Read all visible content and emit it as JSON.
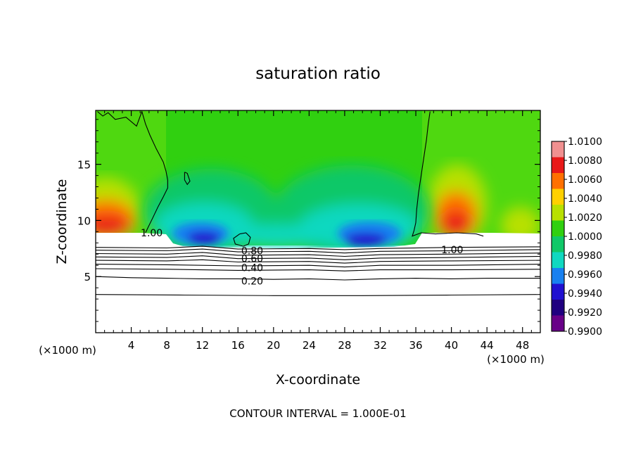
{
  "chart_data": {
    "type": "heatmap",
    "title": "saturation ratio",
    "xlabel": "X-coordinate",
    "ylabel": "Z-coordinate",
    "x_unit_label": "(×1000 m)",
    "x_ticks": [
      4,
      8,
      12,
      16,
      20,
      24,
      28,
      32,
      36,
      40,
      44,
      48
    ],
    "y_ticks": [
      5,
      10,
      15
    ],
    "xlim": [
      0,
      50
    ],
    "ylim": [
      0,
      19.8
    ],
    "footer": "CONTOUR INTERVAL = 1.000E-01",
    "colorbar": {
      "ticks": [
        "1.0100",
        "1.0080",
        "1.0060",
        "1.0040",
        "1.0020",
        "1.0000",
        "0.9980",
        "0.9960",
        "0.9940",
        "0.9920",
        "0.9900"
      ],
      "range": [
        0.99,
        1.01
      ],
      "colors": [
        "#f09090",
        "#e81818",
        "#ff7000",
        "#ffd000",
        "#b8e000",
        "#30d010",
        "#10c868",
        "#10d8c0",
        "#1880f0",
        "#2010d0",
        "#200080",
        "#680088"
      ]
    },
    "contour_labels": [
      {
        "text": "1.00",
        "x": 6.3,
        "y": 8.9
      },
      {
        "text": "1.00",
        "x": 40.1,
        "y": 7.4
      },
      {
        "text": "0.80",
        "x": 17.6,
        "y": 7.3
      },
      {
        "text": "0.60",
        "x": 17.6,
        "y": 6.6
      },
      {
        "text": "0.40",
        "x": 17.6,
        "y": 5.8
      },
      {
        "text": "0.20",
        "x": 17.6,
        "y": 4.6
      }
    ],
    "contours": [
      {
        "level": 0.2,
        "x": [
          0,
          4,
          8,
          12,
          16,
          20,
          24,
          28,
          32,
          36,
          40,
          44,
          50
        ],
        "y": [
          5.0,
          4.9,
          4.85,
          4.8,
          4.8,
          4.75,
          4.8,
          4.7,
          4.8,
          4.85,
          4.8,
          4.85,
          4.85
        ]
      },
      {
        "level": 0.1,
        "x": [
          0,
          10,
          20,
          30,
          40,
          50
        ],
        "y": [
          3.4,
          3.35,
          3.3,
          3.3,
          3.35,
          3.4
        ]
      },
      {
        "level": 0.3,
        "x": [
          0,
          8,
          16,
          24,
          28,
          32,
          40,
          50
        ],
        "y": [
          5.7,
          5.65,
          5.55,
          5.6,
          5.5,
          5.6,
          5.6,
          5.65
        ]
      },
      {
        "level": 0.4,
        "x": [
          0,
          8,
          16,
          24,
          28,
          32,
          40,
          50
        ],
        "y": [
          6.1,
          6.05,
          5.95,
          6.0,
          5.85,
          6.0,
          6.0,
          6.1
        ]
      },
      {
        "level": 0.5,
        "x": [
          0,
          8,
          12,
          16,
          24,
          28,
          32,
          40,
          50
        ],
        "y": [
          6.45,
          6.4,
          6.5,
          6.3,
          6.35,
          6.2,
          6.35,
          6.4,
          6.45
        ]
      },
      {
        "level": 0.6,
        "x": [
          0,
          8,
          12,
          16,
          24,
          28,
          32,
          40,
          50
        ],
        "y": [
          6.75,
          6.7,
          6.85,
          6.6,
          6.65,
          6.5,
          6.65,
          6.7,
          6.8
        ]
      },
      {
        "level": 0.7,
        "x": [
          0,
          8,
          12,
          16,
          24,
          28,
          32,
          40,
          50
        ],
        "y": [
          7.05,
          7.0,
          7.15,
          6.9,
          6.95,
          6.8,
          6.95,
          7.0,
          7.1
        ]
      },
      {
        "level": 0.8,
        "x": [
          0,
          8,
          12,
          16,
          24,
          28,
          32,
          40,
          50
        ],
        "y": [
          7.35,
          7.3,
          7.45,
          7.2,
          7.25,
          7.1,
          7.25,
          7.3,
          7.4
        ]
      },
      {
        "level": 0.9,
        "x": [
          0,
          8,
          12,
          16,
          24,
          28,
          32,
          40,
          50
        ],
        "y": [
          7.6,
          7.55,
          7.7,
          7.45,
          7.5,
          7.4,
          7.5,
          7.6,
          7.65
        ]
      },
      {
        "level": 1.0,
        "x": [
          0.2,
          0.8,
          1.4,
          2.2,
          3.4,
          4.6,
          5.2,
          5.6,
          6.1,
          6.8,
          7.6,
          7.9,
          8.1,
          8.1,
          7.6,
          7.0,
          6.4,
          5.9,
          5.6
        ],
        "y": [
          19.7,
          19.3,
          19.6,
          19.0,
          19.2,
          18.4,
          19.7,
          18.6,
          17.6,
          16.4,
          15.2,
          14.4,
          13.6,
          12.9,
          12.1,
          11.2,
          10.2,
          9.4,
          8.9
        ]
      },
      {
        "level": 1.0,
        "x": [
          37.6,
          37.4,
          37.2,
          36.9,
          36.6,
          36.3,
          36.1,
          36.0,
          35.8,
          35.6,
          36.6,
          38.2,
          40.6,
          42.8,
          43.6
        ],
        "y": [
          19.7,
          18.6,
          17.2,
          15.6,
          14.0,
          12.4,
          11.0,
          9.8,
          9.1,
          8.6,
          8.9,
          8.8,
          8.9,
          8.8,
          8.6
        ]
      },
      {
        "level": 1.0,
        "x": [
          10.0,
          10.3,
          10.6,
          10.3,
          10.0,
          10.0
        ],
        "y": [
          14.3,
          14.2,
          13.5,
          13.2,
          13.6,
          14.3
        ]
      },
      {
        "level": 1.0,
        "x": [
          16.2,
          16.9,
          17.4,
          17.2,
          16.6,
          15.7,
          15.5,
          16.2
        ],
        "y": [
          8.8,
          8.9,
          8.5,
          7.9,
          7.7,
          7.9,
          8.4,
          8.8
        ]
      }
    ]
  }
}
